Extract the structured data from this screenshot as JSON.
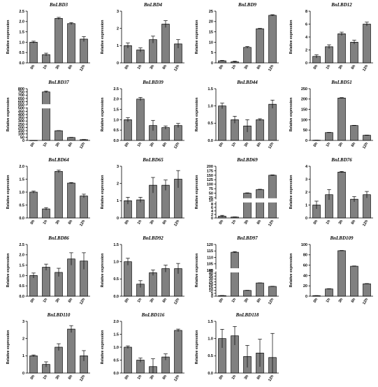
{
  "chart_data": [
    {
      "type": "bar",
      "title": "BnLBD3",
      "ylabel": "Relative expression",
      "categories": [
        "0h",
        "1h",
        "3h",
        "6h",
        "12h"
      ],
      "values": [
        1.0,
        0.4,
        2.15,
        1.9,
        1.15
      ],
      "errors": [
        0.05,
        0.07,
        0.05,
        0.05,
        0.12
      ],
      "yticks": [
        "0.0",
        "0.5",
        "1.0",
        "1.5",
        "2.0",
        "2.5"
      ],
      "ylim": [
        0,
        2.5
      ]
    },
    {
      "type": "bar",
      "title": "BnLBD4",
      "ylabel": "Relative expression",
      "categories": [
        "0h",
        "1h",
        "3h",
        "6h",
        "12h"
      ],
      "values": [
        1.0,
        0.75,
        1.35,
        2.25,
        1.1
      ],
      "errors": [
        0.15,
        0.12,
        0.2,
        0.2,
        0.25
      ],
      "yticks": [
        "0",
        "1",
        "2",
        "3"
      ],
      "ylim": [
        0,
        3
      ]
    },
    {
      "type": "bar",
      "title": "BnLBD9",
      "ylabel": "Relative expression",
      "categories": [
        "0h",
        "1h",
        "3h",
        "6h",
        "12h"
      ],
      "values": [
        1.0,
        0.5,
        7.5,
        16.5,
        23
      ],
      "errors": [
        0.2,
        0.3,
        0.4,
        0.2,
        0.3
      ],
      "yticks": [
        "0",
        "5",
        "10",
        "15",
        "20",
        "25"
      ],
      "ylim": [
        0,
        25
      ]
    },
    {
      "type": "bar",
      "title": "BnLBD12",
      "ylabel": "Relative expression",
      "categories": [
        "0h",
        "1h",
        "3h",
        "6h",
        "12h"
      ],
      "values": [
        1.0,
        2.5,
        4.5,
        3.2,
        6.0
      ],
      "errors": [
        0.25,
        0.3,
        0.25,
        0.3,
        0.3
      ],
      "yticks": [
        "0",
        "2",
        "4",
        "6",
        "8"
      ],
      "ylim": [
        0,
        8
      ]
    },
    {
      "type": "bar",
      "title": "BnLBD37",
      "ylabel": "Relative expression",
      "categories": [
        "0h",
        "1h",
        "3h",
        "6h",
        "12h"
      ],
      "values": [
        1.0,
        750,
        150,
        45,
        12
      ],
      "errors": [
        0.3,
        15,
        3,
        3,
        3
      ],
      "yticks": [
        "0",
        "50",
        "100",
        "150",
        "200",
        "250",
        "300",
        "350",
        "400",
        "450",
        "500",
        "550",
        "600",
        "650",
        "700",
        "750",
        "800"
      ],
      "ylim": [
        0,
        800
      ],
      "axis_break": true
    },
    {
      "type": "bar",
      "title": "BnLBD39",
      "ylabel": "Relative expression",
      "categories": [
        "0h",
        "1h",
        "3h",
        "6h",
        "12h"
      ],
      "values": [
        1.0,
        2.0,
        0.72,
        0.62,
        0.72
      ],
      "errors": [
        0.1,
        0.08,
        0.25,
        0.08,
        0.1
      ],
      "yticks": [
        "0.0",
        "0.5",
        "1.0",
        "1.5",
        "2.0",
        "2.5"
      ],
      "ylim": [
        0,
        2.5
      ]
    },
    {
      "type": "bar",
      "title": "BnLBD44",
      "ylabel": "Relative expression",
      "categories": [
        "0h",
        "1h",
        "3h",
        "6h",
        "12h"
      ],
      "values": [
        1.0,
        0.6,
        0.42,
        0.6,
        1.05
      ],
      "errors": [
        0.08,
        0.1,
        0.18,
        0.03,
        0.12
      ],
      "yticks": [
        "0.0",
        "0.5",
        "1.0",
        "1.5"
      ],
      "ylim": [
        0,
        1.5
      ]
    },
    {
      "type": "bar",
      "title": "BnLBD51",
      "ylabel": "Relative expression",
      "categories": [
        "0h",
        "1h",
        "3h",
        "6h",
        "12h"
      ],
      "values": [
        1.0,
        38,
        205,
        72,
        25
      ],
      "errors": [
        0.2,
        1,
        2,
        1,
        1
      ],
      "yticks": [
        "0",
        "50",
        "100",
        "150",
        "200",
        "250"
      ],
      "ylim": [
        0,
        250
      ]
    },
    {
      "type": "bar",
      "title": "BnLBD64",
      "ylabel": "Relative expression",
      "categories": [
        "0h",
        "1h",
        "3h",
        "6h",
        "12h"
      ],
      "values": [
        1.0,
        0.35,
        1.8,
        1.35,
        0.85
      ],
      "errors": [
        0.04,
        0.05,
        0.05,
        0.02,
        0.07
      ],
      "yticks": [
        "0.0",
        "0.5",
        "1.0",
        "1.5",
        "2.0"
      ],
      "ylim": [
        0,
        2.0
      ]
    },
    {
      "type": "bar",
      "title": "BnLBD65",
      "ylabel": "Relative expression",
      "categories": [
        "0h",
        "1h",
        "3h",
        "6h",
        "12h"
      ],
      "values": [
        1.0,
        1.05,
        1.9,
        1.9,
        2.25
      ],
      "errors": [
        0.2,
        0.15,
        0.45,
        0.3,
        0.5
      ],
      "yticks": [
        "0",
        "1",
        "2",
        "3"
      ],
      "ylim": [
        0,
        3
      ]
    },
    {
      "type": "bar",
      "title": "BnLBD69",
      "ylabel": "Relative expression",
      "categories": [
        "0h",
        "1h",
        "3h",
        "6h",
        "12h"
      ],
      "values": [
        1.0,
        0.5,
        50,
        70,
        150
      ],
      "errors": [
        0.5,
        0.1,
        2,
        2,
        2
      ],
      "yticks": [
        "0",
        "2",
        "4",
        "6",
        "8",
        "10",
        "25",
        "50",
        "75",
        "100",
        "125",
        "150",
        "175",
        "200"
      ],
      "ylim": [
        0,
        200
      ],
      "axis_break": true
    },
    {
      "type": "bar",
      "title": "BnLBD76",
      "ylabel": "Relative expression",
      "categories": [
        "0h",
        "1h",
        "3h",
        "6h",
        "12h"
      ],
      "values": [
        1.0,
        1.8,
        3.55,
        1.45,
        1.8
      ],
      "errors": [
        0.3,
        0.4,
        0.05,
        0.2,
        0.25
      ],
      "yticks": [
        "0",
        "1",
        "2",
        "3",
        "4"
      ],
      "ylim": [
        0,
        4
      ]
    },
    {
      "type": "bar",
      "title": "BnLBD86",
      "ylabel": "Relative expression",
      "categories": [
        "0h",
        "1h",
        "3h",
        "6h",
        "12h"
      ],
      "values": [
        1.0,
        1.4,
        1.15,
        1.8,
        1.7
      ],
      "errors": [
        0.12,
        0.15,
        0.2,
        0.3,
        0.4
      ],
      "yticks": [
        "0.0",
        "0.5",
        "1.0",
        "1.5",
        "2.0",
        "2.5"
      ],
      "ylim": [
        0,
        2.5
      ]
    },
    {
      "type": "bar",
      "title": "BnLBD92",
      "ylabel": "Relative expression",
      "categories": [
        "0h",
        "1h",
        "3h",
        "6h",
        "12h"
      ],
      "values": [
        1.0,
        0.35,
        0.68,
        0.8,
        0.8
      ],
      "errors": [
        0.1,
        0.1,
        0.08,
        0.1,
        0.15
      ],
      "yticks": [
        "0.0",
        "0.5",
        "1.0",
        "1.5"
      ],
      "ylim": [
        0,
        1.5
      ]
    },
    {
      "type": "bar",
      "title": "BnLBD97",
      "ylabel": "Relative expression",
      "categories": [
        "0h",
        "1h",
        "3h",
        "6h",
        "12h"
      ],
      "values": [
        1.0,
        114,
        10,
        23,
        17
      ],
      "errors": [
        0.2,
        0.5,
        0.3,
        0.3,
        0.3
      ],
      "yticks": [
        "0",
        "5",
        "10",
        "15",
        "20",
        "25",
        "30",
        "35",
        "40",
        "45",
        "100",
        "105",
        "110",
        "115",
        "120"
      ],
      "ylim": [
        0,
        120
      ],
      "axis_break": true
    },
    {
      "type": "bar",
      "title": "BnLBD109",
      "ylabel": "Relative expression",
      "categories": [
        "0h",
        "1h",
        "3h",
        "6h",
        "12h"
      ],
      "values": [
        1.0,
        14,
        88,
        58,
        24
      ],
      "errors": [
        0.2,
        0.5,
        0.5,
        0.5,
        0.5
      ],
      "yticks": [
        "0",
        "20",
        "40",
        "60",
        "80",
        "100"
      ],
      "ylim": [
        0,
        100
      ]
    },
    {
      "type": "bar",
      "title": "BnLBD110",
      "ylabel": "Relative expression",
      "categories": [
        "0h",
        "1h",
        "3h",
        "6h",
        "12h"
      ],
      "values": [
        1.0,
        0.5,
        1.5,
        2.55,
        1.0
      ],
      "errors": [
        0.05,
        0.15,
        0.2,
        0.2,
        0.3
      ],
      "yticks": [
        "0",
        "1",
        "2",
        "3"
      ],
      "ylim": [
        0,
        3
      ]
    },
    {
      "type": "bar",
      "title": "BnLBD116",
      "ylabel": "Relative expression",
      "categories": [
        "0h",
        "1h",
        "3h",
        "6h",
        "12h"
      ],
      "values": [
        1.0,
        0.5,
        0.25,
        0.62,
        1.65
      ],
      "errors": [
        0.05,
        0.08,
        0.3,
        0.12,
        0.05
      ],
      "yticks": [
        "0.0",
        "0.5",
        "1.0",
        "1.5",
        "2.0"
      ],
      "ylim": [
        0,
        2.0
      ]
    },
    {
      "type": "bar",
      "title": "BnLBD118",
      "ylabel": "Relative expression",
      "categories": [
        "0h",
        "1h",
        "3h",
        "6h",
        "12h"
      ],
      "values": [
        1.0,
        1.08,
        0.48,
        0.58,
        0.45
      ],
      "errors": [
        0.27,
        0.27,
        0.32,
        0.4,
        0.7
      ],
      "yticks": [
        "0.0",
        "0.5",
        "1.0",
        "1.5"
      ],
      "ylim": [
        0,
        1.5
      ]
    }
  ]
}
